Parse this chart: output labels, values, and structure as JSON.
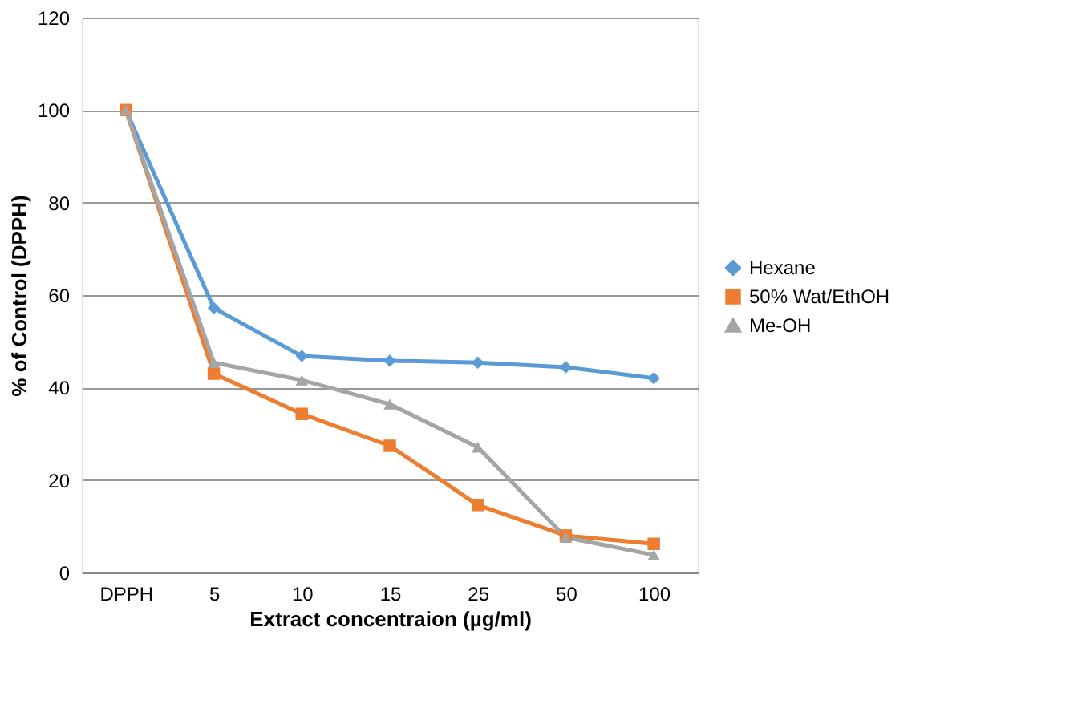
{
  "chart_data": {
    "type": "line",
    "xlabel": "Extract concentraion  (µg/ml)",
    "ylabel": "% of Control (DPPH)",
    "categories": [
      "DPPH",
      "5",
      "10",
      "15",
      "25",
      "50",
      "100"
    ],
    "series": [
      {
        "name": "Hexane",
        "color": "#5b9bd5",
        "marker": "diamond",
        "values": [
          100,
          57.2,
          46.8,
          45.8,
          45.4,
          44.4,
          42.0
        ]
      },
      {
        "name": "50% Wat/EthOH",
        "color": "#ed7d31",
        "marker": "square",
        "values": [
          100,
          43.0,
          34.3,
          27.4,
          14.6,
          8.0,
          6.2
        ]
      },
      {
        "name": "Me-OH",
        "color": "#a5a5a5",
        "marker": "triangle",
        "values": [
          100,
          45.4,
          41.6,
          36.4,
          27.1,
          7.6,
          3.8
        ]
      }
    ],
    "ylim": [
      0,
      120
    ],
    "yticks": [
      0,
      20,
      40,
      60,
      80,
      100,
      120
    ],
    "grid": "y",
    "legend": "right",
    "line_style": "solid"
  }
}
